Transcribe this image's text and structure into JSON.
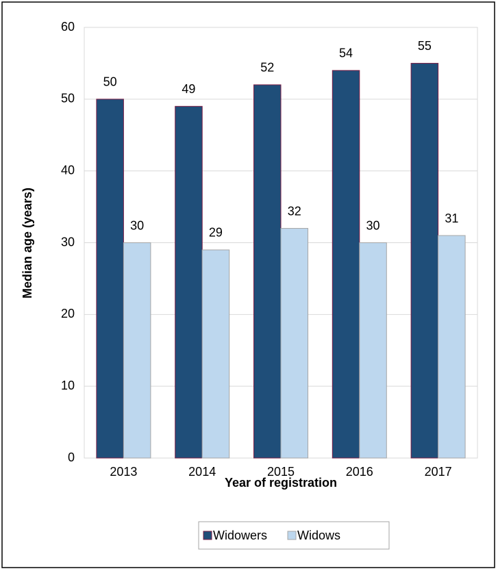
{
  "chart_data": {
    "type": "bar",
    "x_label": "Year of registration",
    "y_label": "Median age (years)",
    "categories": [
      "2013",
      "2014",
      "2015",
      "2016",
      "2017"
    ],
    "series": [
      {
        "name": "Widowers",
        "color": "#1f4e79",
        "values": [
          50,
          49,
          52,
          54,
          55
        ]
      },
      {
        "name": "Widows",
        "color": "#bdd7ee",
        "values": [
          30,
          29,
          32,
          30,
          31
        ]
      }
    ],
    "ylim": [
      0,
      60
    ],
    "yticks": [
      0,
      10,
      20,
      30,
      40,
      50,
      60
    ],
    "grid": true,
    "legend": "bottom"
  }
}
